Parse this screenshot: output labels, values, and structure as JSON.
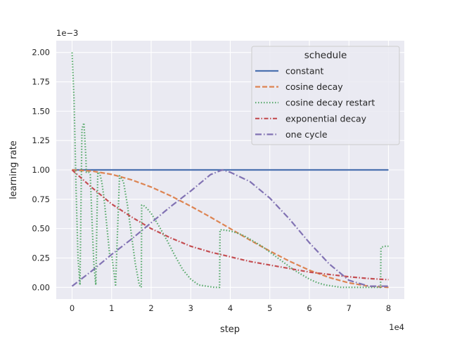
{
  "chart_data": {
    "type": "line",
    "xlabel": "step",
    "ylabel": "learning rate",
    "x_offset_label": "1e4",
    "y_offset_label": "1e−3",
    "xlim": [
      -0.4,
      8.4
    ],
    "ylim": [
      -0.1,
      2.1
    ],
    "x_ticks": [
      0,
      1,
      2,
      3,
      4,
      5,
      6,
      7,
      8
    ],
    "x_tick_labels": [
      "0",
      "1",
      "2",
      "3",
      "4",
      "5",
      "6",
      "7",
      "8"
    ],
    "y_ticks": [
      0.0,
      0.25,
      0.5,
      0.75,
      1.0,
      1.25,
      1.5,
      1.75,
      2.0
    ],
    "y_tick_labels": [
      "0.00",
      "0.25",
      "0.50",
      "0.75",
      "1.00",
      "1.25",
      "1.50",
      "1.75",
      "2.00"
    ],
    "grid": true,
    "legend": {
      "title": "schedule",
      "placement": "upper-right"
    },
    "series": [
      {
        "name": "constant",
        "color": "#4c72b0",
        "dash": "solid",
        "x": [
          0,
          8
        ],
        "y": [
          1.0,
          1.0
        ]
      },
      {
        "name": "cosine decay",
        "color": "#dd8452",
        "dash": "dashed",
        "x": [
          0,
          0.5,
          1,
          1.5,
          2,
          2.5,
          3,
          3.5,
          4,
          4.5,
          5,
          5.5,
          6,
          6.5,
          7,
          7.5,
          8
        ],
        "y": [
          1.0,
          0.99,
          0.962,
          0.916,
          0.854,
          0.778,
          0.691,
          0.598,
          0.5,
          0.402,
          0.309,
          0.222,
          0.146,
          0.084,
          0.038,
          0.01,
          0.0
        ]
      },
      {
        "name": "cosine decay restart",
        "color": "#55a868",
        "dash": "dotted",
        "x": [
          0.0,
          0.05,
          0.1,
          0.15,
          0.2,
          0.25,
          0.3,
          0.35,
          0.36,
          0.38,
          0.42,
          0.46,
          0.5,
          0.55,
          0.6,
          0.65,
          0.7,
          0.75,
          0.8,
          0.85,
          0.9,
          0.95,
          1.0,
          1.1,
          1.2,
          1.3,
          1.4,
          1.5,
          1.6,
          1.7,
          1.75,
          1.76,
          1.8,
          1.9,
          2.0,
          2.2,
          2.4,
          2.6,
          2.8,
          3.0,
          3.2,
          3.4,
          3.6,
          3.73,
          3.74,
          3.8,
          4.0,
          4.2,
          4.4,
          4.6,
          4.8,
          5.0,
          5.2,
          5.4,
          5.6,
          5.8,
          6.0,
          6.2,
          6.4,
          6.6,
          6.8,
          7.0,
          7.2,
          7.4,
          7.6,
          7.7,
          7.8,
          7.81,
          7.9,
          8.0
        ],
        "y": [
          2.0,
          1.6,
          0.85,
          0.25,
          0.02,
          1.35,
          1.4,
          1.1,
          0.98,
          0.98,
          0.98,
          0.96,
          0.6,
          0.2,
          0.02,
          0.98,
          0.97,
          0.9,
          0.78,
          0.62,
          0.45,
          0.28,
          0.28,
          0.02,
          0.95,
          0.9,
          0.7,
          0.45,
          0.2,
          0.02,
          0.0,
          0.7,
          0.7,
          0.67,
          0.63,
          0.52,
          0.4,
          0.27,
          0.15,
          0.07,
          0.02,
          0.01,
          0.0,
          0.0,
          0.49,
          0.49,
          0.48,
          0.46,
          0.43,
          0.39,
          0.35,
          0.3,
          0.25,
          0.2,
          0.15,
          0.11,
          0.07,
          0.04,
          0.02,
          0.01,
          0.0,
          0.0,
          0.0,
          0.0,
          0.0,
          0.0,
          0.0,
          0.34,
          0.35,
          0.35
        ]
      },
      {
        "name": "exponential decay",
        "color": "#c44e52",
        "dash": "dashdot",
        "x": [
          0,
          0.5,
          1,
          1.5,
          2,
          2.5,
          3,
          3.5,
          4,
          4.5,
          5,
          5.5,
          6,
          6.5,
          7,
          7.5,
          8
        ],
        "y": [
          1.0,
          0.85,
          0.71,
          0.6,
          0.5,
          0.42,
          0.35,
          0.3,
          0.26,
          0.22,
          0.19,
          0.16,
          0.13,
          0.11,
          0.09,
          0.075,
          0.065
        ]
      },
      {
        "name": "one cycle",
        "color": "#8172b3",
        "dash": "dashdotlong",
        "x": [
          0,
          0.5,
          1,
          1.5,
          2,
          2.5,
          3,
          3.5,
          3.8,
          4,
          4.5,
          5,
          5.5,
          6,
          6.5,
          7,
          7.5,
          8
        ],
        "y": [
          0.01,
          0.14,
          0.28,
          0.41,
          0.55,
          0.69,
          0.82,
          0.96,
          1.0,
          0.98,
          0.9,
          0.76,
          0.58,
          0.38,
          0.2,
          0.06,
          0.01,
          0.01
        ]
      }
    ]
  }
}
